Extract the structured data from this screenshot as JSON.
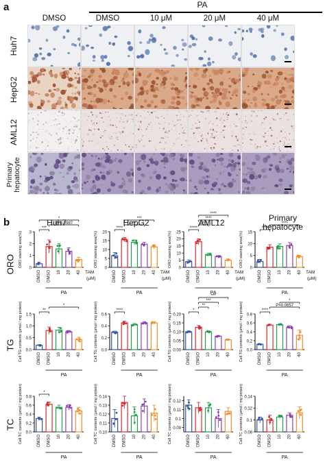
{
  "panel_a": {
    "letter": "a",
    "pa_header": "PA",
    "columns": [
      "DMSO",
      "DMSO",
      "10 μM",
      "20 μM",
      "40 μM"
    ],
    "rows": [
      {
        "label": "Huh7",
        "style": "cells",
        "bg": "#eef0f3",
        "fg": "#4f6fa8"
      },
      {
        "label": "HepG2",
        "style": "dense",
        "bg": "#e9d3c3",
        "fg": "#a5613d"
      },
      {
        "label": "AML12",
        "style": "speck",
        "bg": "#f3efee",
        "fg": "#b7a3a9"
      },
      {
        "label": "Primary hepatocyte",
        "label_line1": "Primary",
        "label_line2": "hepatocyte",
        "style": "mixed",
        "bg": "#b9b6cf",
        "fg": "#6f5a86"
      }
    ]
  },
  "panel_b": {
    "letter": "b",
    "cell_titles": [
      "Huh7",
      "HepG2",
      "AML12",
      "Primary hepatocyte"
    ],
    "title_primary_line1": "Primary",
    "title_primary_line2": "hepatocyte",
    "row_names": [
      "ORO",
      "TG",
      "TC"
    ],
    "tam_label": "TAM",
    "unit_label": "(μM)",
    "pa_label": "PA"
  },
  "chart_data": [
    {
      "type": "bar",
      "panel": "ORO",
      "cell": "Huh7",
      "categories": [
        "DMSO",
        "DMSO",
        "10",
        "20",
        "40"
      ],
      "values": [
        0.3,
        1.75,
        1.55,
        1.35,
        0.65
      ],
      "errors": [
        0.12,
        0.55,
        0.45,
        0.3,
        0.2
      ],
      "ylim": [
        0,
        3
      ],
      "yticks": [
        0,
        1,
        2,
        3
      ],
      "ylabel": "ORO staining area(%)",
      "colors": [
        "#33539e",
        "#d8282b",
        "#1f9e4a",
        "#8c3fb0",
        "#f28c28"
      ],
      "sig": [
        {
          "from": 0,
          "to": 1,
          "label": "***"
        },
        {
          "from": 1,
          "to": 4,
          "label": "P=0.0987"
        },
        {
          "from": 0,
          "to": 4,
          "label": "*"
        }
      ]
    },
    {
      "type": "bar",
      "panel": "ORO",
      "cell": "HepG2",
      "categories": [
        "DMSO",
        "DMSO",
        "10",
        "20",
        "40"
      ],
      "values": [
        6.5,
        15.5,
        14.0,
        13.0,
        11.5
      ],
      "errors": [
        1.8,
        1.2,
        1.4,
        1.0,
        1.1
      ],
      "ylim": [
        0,
        20
      ],
      "yticks": [
        0,
        5,
        10,
        15,
        20
      ],
      "ylabel": "ORO staining area(%)",
      "colors": [
        "#33539e",
        "#d8282b",
        "#1f9e4a",
        "#8c3fb0",
        "#f28c28"
      ],
      "sig": [
        {
          "from": 0,
          "to": 1,
          "label": "****"
        },
        {
          "from": 1,
          "to": 3,
          "label": "**"
        },
        {
          "from": 1,
          "to": 4,
          "label": "***"
        }
      ]
    },
    {
      "type": "bar",
      "panel": "ORO",
      "cell": "AML12",
      "categories": [
        "DMSO",
        "DMSO",
        "10",
        "20",
        "40"
      ],
      "values": [
        4.0,
        18.0,
        9.0,
        7.5,
        5.0
      ],
      "errors": [
        1.2,
        2.0,
        1.0,
        0.8,
        0.9
      ],
      "ylim": [
        0,
        25
      ],
      "yticks": [
        0,
        5,
        10,
        15,
        20,
        25
      ],
      "ylabel": "ORO staining area(%)",
      "colors": [
        "#33539e",
        "#d8282b",
        "#1f9e4a",
        "#8c3fb0",
        "#f28c28"
      ],
      "sig": [
        {
          "from": 0,
          "to": 1,
          "label": "*****"
        },
        {
          "from": 1,
          "to": 2,
          "label": "*****"
        },
        {
          "from": 1,
          "to": 3,
          "label": "****"
        },
        {
          "from": 1,
          "to": 4,
          "label": "****"
        }
      ]
    },
    {
      "type": "bar",
      "panel": "ORO",
      "cell": "Primary hepatocyte",
      "categories": [
        "DMSO",
        "DMSO",
        "10",
        "20",
        "40"
      ],
      "values": [
        2.5,
        8.5,
        8.8,
        9.2,
        4.5
      ],
      "errors": [
        0.8,
        1.0,
        1.1,
        1.2,
        0.6
      ],
      "ylim": [
        0,
        15
      ],
      "yticks": [
        0,
        5,
        10,
        15
      ],
      "ylabel": "ORO staining area(%)",
      "colors": [
        "#33539e",
        "#d8282b",
        "#1f9e4a",
        "#8c3fb0",
        "#f28c28"
      ],
      "sig": [
        {
          "from": 0,
          "to": 1,
          "label": "****"
        },
        {
          "from": 1,
          "to": 4,
          "label": "****"
        }
      ]
    },
    {
      "type": "bar",
      "panel": "TG",
      "cell": "Huh7",
      "categories": [
        "DMSO",
        "DMSO",
        "10",
        "20",
        "40"
      ],
      "values": [
        0.18,
        0.8,
        0.82,
        0.75,
        0.42
      ],
      "errors": [
        0.03,
        0.15,
        0.12,
        0.05,
        0.1
      ],
      "ylim": [
        0,
        1.5
      ],
      "yticks": [
        0.0,
        0.5,
        1.0,
        1.5
      ],
      "ylabel": "Cell TG contents (μmol / mg protein)",
      "colors": [
        "#33539e",
        "#d8282b",
        "#1f9e4a",
        "#8c3fb0",
        "#f28c28"
      ],
      "sig": [
        {
          "from": 0,
          "to": 1,
          "label": "**"
        },
        {
          "from": 1,
          "to": 4,
          "label": "*"
        }
      ]
    },
    {
      "type": "bar",
      "panel": "TG",
      "cell": "HepG2",
      "categories": [
        "DMSO",
        "DMSO",
        "10",
        "20",
        "40"
      ],
      "values": [
        0.29,
        0.45,
        0.42,
        0.45,
        0.45
      ],
      "errors": [
        0.02,
        0.03,
        0.02,
        0.02,
        0.02
      ],
      "ylim": [
        0,
        0.6
      ],
      "yticks": [
        0.0,
        0.2,
        0.4,
        0.6
      ],
      "ylabel": "Cell TG contents (μmol / mg protein)",
      "colors": [
        "#33539e",
        "#d8282b",
        "#1f9e4a",
        "#8c3fb0",
        "#f28c28"
      ],
      "sig": [
        {
          "from": 0,
          "to": 1,
          "label": "****"
        }
      ]
    },
    {
      "type": "bar",
      "panel": "TG",
      "cell": "AML12",
      "categories": [
        "DMSO",
        "DMSO",
        "10",
        "20",
        "40"
      ],
      "values": [
        0.1,
        0.125,
        0.1,
        0.075,
        0.055
      ],
      "errors": [
        0.005,
        0.01,
        0.005,
        0.004,
        0.003
      ],
      "ylim": [
        0,
        0.2
      ],
      "yticks": [
        0.0,
        0.05,
        0.1,
        0.15,
        0.2
      ],
      "ylabel": "Cell TG contents (μmol / mg protein)",
      "colors": [
        "#33539e",
        "#d8282b",
        "#1f9e4a",
        "#8c3fb0",
        "#f28c28"
      ],
      "sig": [
        {
          "from": 0,
          "to": 1,
          "label": "*"
        },
        {
          "from": 1,
          "to": 2,
          "label": "**"
        },
        {
          "from": 1,
          "to": 3,
          "label": "***"
        },
        {
          "from": 1,
          "to": 4,
          "label": "***"
        }
      ]
    },
    {
      "type": "bar",
      "panel": "TG",
      "cell": "Primary hepatocyte",
      "categories": [
        "DMSO",
        "DMSO",
        "10",
        "20",
        "40"
      ],
      "values": [
        0.12,
        0.55,
        0.56,
        0.5,
        0.32
      ],
      "errors": [
        0.01,
        0.02,
        0.02,
        0.03,
        0.12
      ],
      "ylim": [
        0,
        0.8
      ],
      "yticks": [
        0.0,
        0.2,
        0.4,
        0.6,
        0.8
      ],
      "ylabel": "Cell TG contents (μmol / mg protein)",
      "colors": [
        "#33539e",
        "#d8282b",
        "#1f9e4a",
        "#8c3fb0",
        "#f28c28"
      ],
      "sig": [
        {
          "from": 0,
          "to": 1,
          "label": "****"
        },
        {
          "from": 1,
          "to": 4,
          "label": "P=0.0657"
        },
        {
          "from": 2,
          "to": 4,
          "label": "*"
        }
      ]
    },
    {
      "type": "bar",
      "panel": "TC",
      "cell": "Huh7",
      "categories": [
        "DMSO",
        "DMSO",
        "10",
        "20",
        "40"
      ],
      "values": [
        0.3,
        0.62,
        0.55,
        0.55,
        0.47
      ],
      "errors": [
        0.03,
        0.05,
        0.05,
        0.06,
        0.08
      ],
      "ylim": [
        0,
        0.8
      ],
      "yticks": [
        0.0,
        0.2,
        0.4,
        0.6,
        0.8
      ],
      "ylabel": "Cell TC contents (μmol / mg protein)",
      "colors": [
        "#33539e",
        "#d8282b",
        "#1f9e4a",
        "#8c3fb0",
        "#f28c28"
      ],
      "sig": [
        {
          "from": 0,
          "to": 1,
          "label": "*"
        }
      ]
    },
    {
      "type": "bar",
      "panel": "TC",
      "cell": "HepG2",
      "categories": [
        "DMSO",
        "DMSO",
        "10",
        "20",
        "40"
      ],
      "values": [
        0.115,
        0.133,
        0.118,
        0.129,
        0.121
      ],
      "errors": [
        0.01,
        0.007,
        0.01,
        0.008,
        0.009
      ],
      "ylim": [
        0.1,
        0.14
      ],
      "yticks": [
        0.1,
        0.11,
        0.12,
        0.13,
        0.14
      ],
      "ylabel": "Cell TC contents (μmol / mg protein)",
      "colors": [
        "#33539e",
        "#d8282b",
        "#1f9e4a",
        "#8c3fb0",
        "#f28c28"
      ],
      "sig": []
    },
    {
      "type": "bar",
      "panel": "TC",
      "cell": "AML12",
      "categories": [
        "DMSO",
        "DMSO",
        "10",
        "20",
        "40"
      ],
      "values": [
        0.115,
        0.112,
        0.112,
        0.1,
        0.108
      ],
      "errors": [
        0.006,
        0.006,
        0.006,
        0.01,
        0.004
      ],
      "ylim": [
        0.085,
        0.125
      ],
      "yticks": [
        0.09,
        0.1,
        0.11,
        0.12
      ],
      "ylabel": "Cell TC contents (μmol / mg protein)",
      "colors": [
        "#33539e",
        "#d8282b",
        "#1f9e4a",
        "#8c3fb0",
        "#f28c28"
      ],
      "sig": []
    },
    {
      "type": "bar",
      "panel": "TC",
      "cell": "Primary hepatocyte",
      "categories": [
        "DMSO",
        "DMSO",
        "10",
        "20",
        "40"
      ],
      "values": [
        0.1,
        0.1,
        0.105,
        0.108,
        0.112
      ],
      "errors": [
        0.005,
        0.008,
        0.003,
        0.004,
        0.01
      ],
      "ylim": [
        0.08,
        0.14
      ],
      "yticks": [
        0.08,
        0.1,
        0.12,
        0.14
      ],
      "ylabel": "Cell TC contents (μmol / mg protein)",
      "colors": [
        "#33539e",
        "#d8282b",
        "#1f9e4a",
        "#8c3fb0",
        "#f28c28"
      ],
      "sig": []
    }
  ]
}
